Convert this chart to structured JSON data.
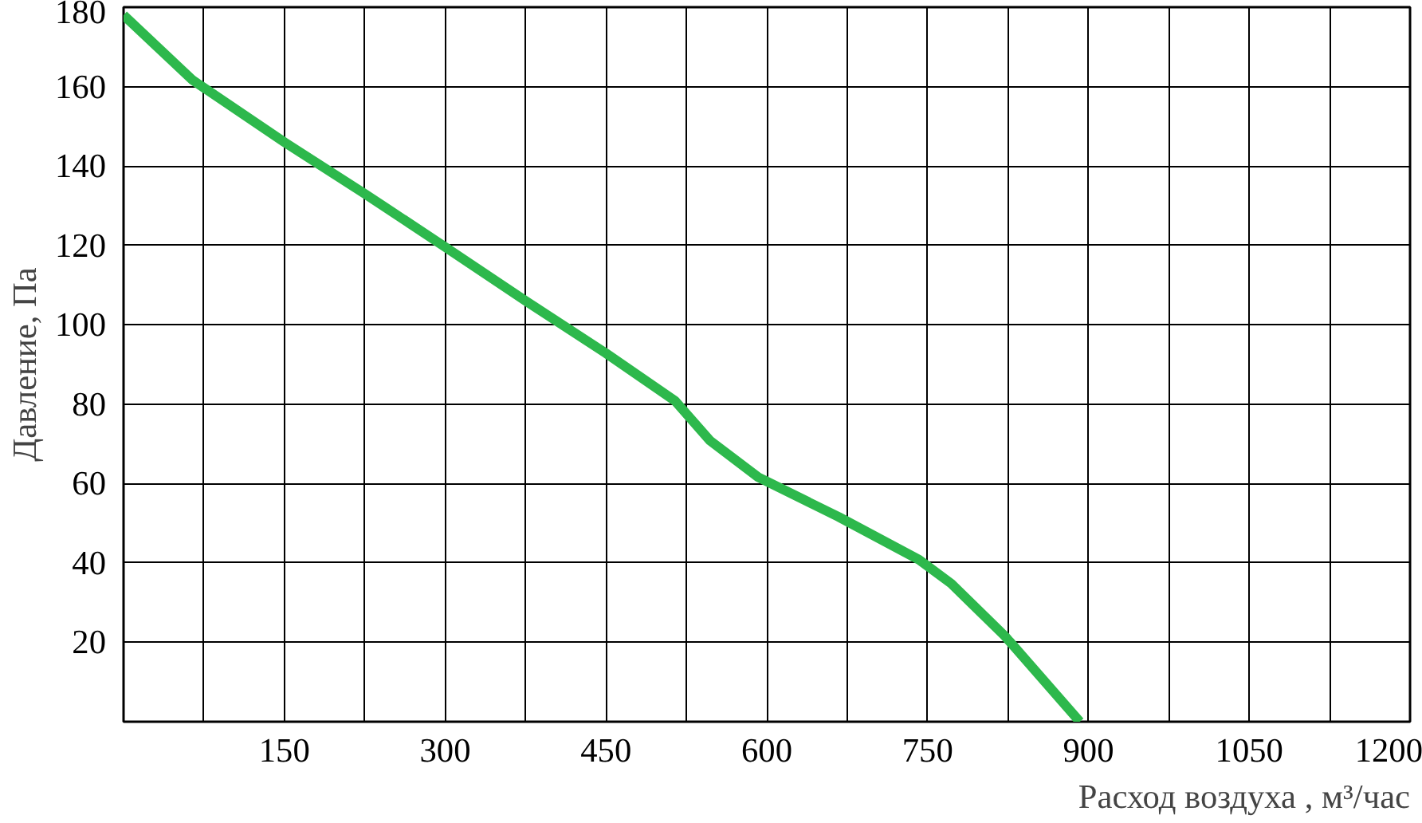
{
  "chart_data": {
    "type": "line",
    "xlabel": "Расход воздуха , м³/час",
    "ylabel": "Давление, Па",
    "x": [
      0,
      64.5,
      150,
      225,
      300,
      375,
      450,
      514.5,
      547,
      592,
      667,
      742,
      772,
      822,
      892
    ],
    "series": [
      {
        "color": "#2db84c",
        "values": [
          178,
          161.6,
          146,
          133,
          119.6,
          106,
          92.8,
          80.8,
          70.8,
          61.6,
          51.6,
          40.8,
          34.8,
          21.6,
          0
        ]
      }
    ],
    "xlim": [
      0,
      1200
    ],
    "ylim": [
      0,
      180
    ],
    "xticks": [
      {
        "value": 75,
        "label": null
      },
      150,
      {
        "value": 225,
        "label": null
      },
      300,
      {
        "value": 375,
        "label": null
      },
      450,
      {
        "value": 525,
        "label": null
      },
      600,
      {
        "value": 675,
        "label": null
      },
      750,
      {
        "value": 825,
        "label": null
      },
      900,
      {
        "value": 975,
        "label": null
      },
      1050,
      {
        "value": 1125,
        "label": null
      },
      1200
    ],
    "yticks": [
      20,
      40,
      60,
      80,
      100,
      120,
      140,
      160,
      180
    ],
    "grid": true,
    "line_style": "solid"
  }
}
